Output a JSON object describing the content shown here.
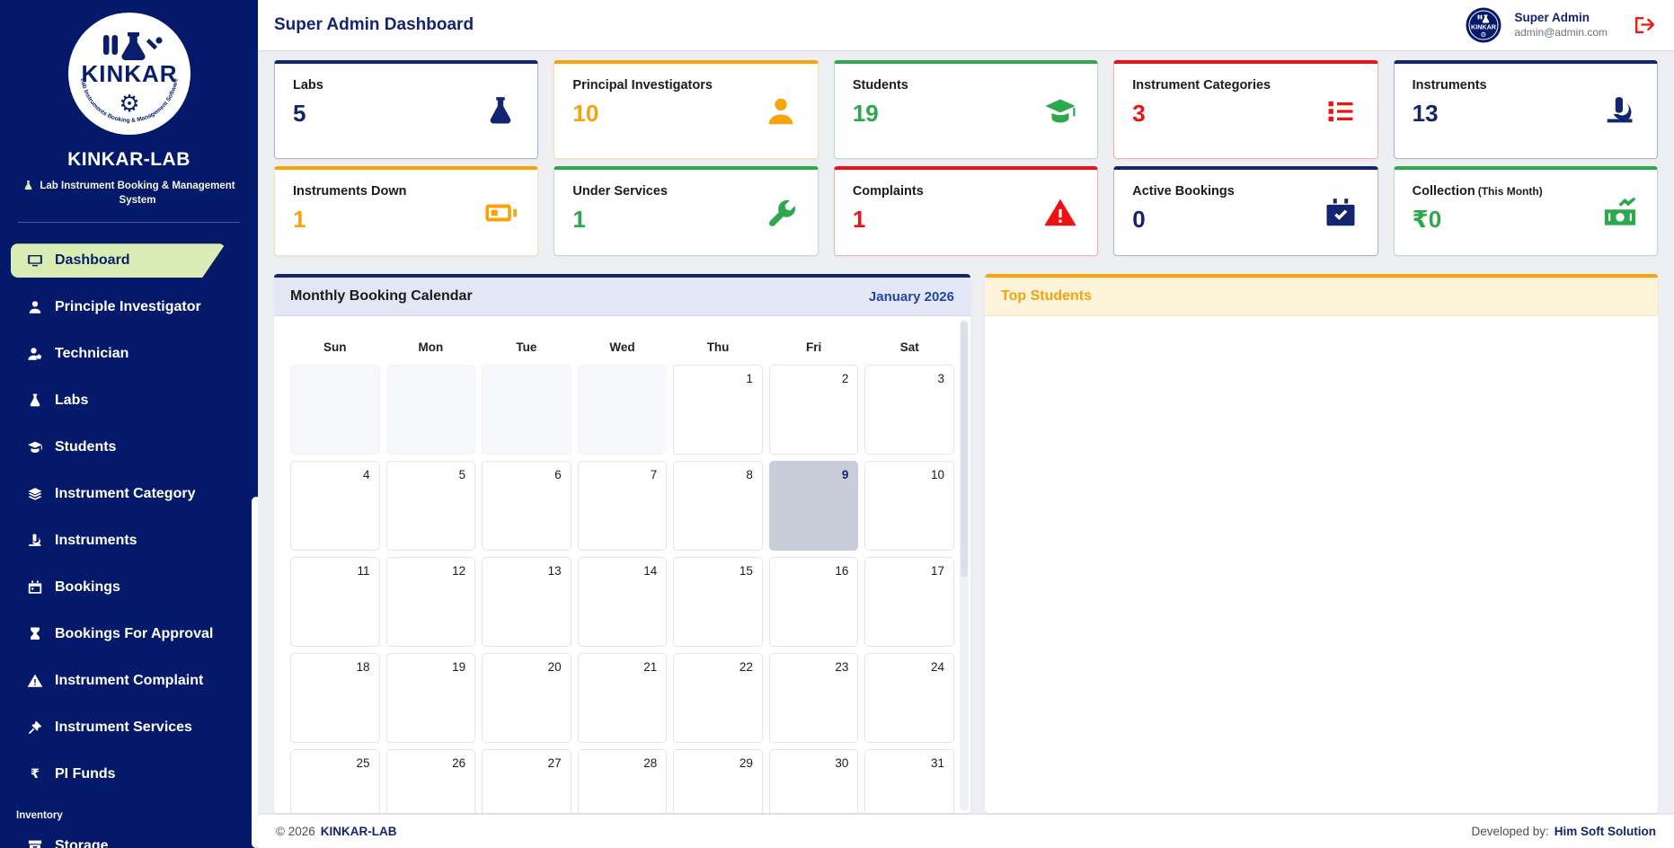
{
  "app": {
    "name": "KINKAR-LAB",
    "tagline": "Lab Instrument Booking & Management System",
    "logo_text": "KINKAR",
    "logo_ring_text": "Lab Instruments Booking & Management Software"
  },
  "header": {
    "title": "Super Admin Dashboard",
    "user_name": "Super Admin",
    "user_email": "admin@admin.com",
    "logout_icon": "logout-icon"
  },
  "colors": {
    "navy": "#14256f",
    "orange": "#f6a40a",
    "green": "#2ea84d",
    "red": "#ee1212",
    "sidebar_bg": "#04196a",
    "active_item_bg": "#d8ecb4",
    "selected_day_bg": "#c8cdd9"
  },
  "sidebar": {
    "items": [
      {
        "label": "Dashboard",
        "icon": "monitor-icon",
        "active": true
      },
      {
        "label": "Principle Investigator",
        "icon": "user-icon",
        "active": false
      },
      {
        "label": "Technician",
        "icon": "user-gear-icon",
        "active": false
      },
      {
        "label": "Labs",
        "icon": "flask-icon",
        "active": false
      },
      {
        "label": "Students",
        "icon": "graduate-icon",
        "active": false
      },
      {
        "label": "Instrument Category",
        "icon": "layers-icon",
        "active": false
      },
      {
        "label": "Instruments",
        "icon": "microscope-icon",
        "active": false
      },
      {
        "label": "Bookings",
        "icon": "calendar-icon",
        "active": false
      },
      {
        "label": "Bookings For Approval",
        "icon": "hourglass-icon",
        "active": false
      },
      {
        "label": "Instrument Complaint",
        "icon": "warning-icon",
        "active": false
      },
      {
        "label": "Instrument Services",
        "icon": "hammer-icon",
        "active": false
      },
      {
        "label": "PI Funds",
        "icon": "rupee-icon",
        "active": false
      }
    ],
    "section_label": "Inventory",
    "section_items": [
      {
        "label": "Storage",
        "icon": "storage-icon",
        "active": false
      }
    ]
  },
  "stat_cards": {
    "row1": [
      {
        "label": "Labs",
        "value": "5",
        "color_key": "navy",
        "icon": "flask-icon"
      },
      {
        "label": "Principal Investigators",
        "value": "10",
        "color_key": "orange",
        "icon": "user-icon"
      },
      {
        "label": "Students",
        "value": "19",
        "color_key": "green",
        "icon": "graduate-icon"
      },
      {
        "label": "Instrument Categories",
        "value": "3",
        "color_key": "red",
        "icon": "list-icon"
      },
      {
        "label": "Instruments",
        "value": "13",
        "color_key": "navy",
        "icon": "microscope-icon"
      }
    ],
    "row2": [
      {
        "label": "Instruments Down",
        "value": "1",
        "color_key": "orange",
        "icon": "battery-icon"
      },
      {
        "label": "Under Services",
        "value": "1",
        "color_key": "green",
        "icon": "wrench-icon"
      },
      {
        "label": "Complaints",
        "value": "1",
        "color_key": "red",
        "icon": "warning-icon"
      },
      {
        "label": "Active Bookings",
        "value": "0",
        "color_key": "navy",
        "icon": "calendar-check-icon"
      },
      {
        "label": "Collection",
        "sub_label": "(This Month)",
        "value": "₹0",
        "color_key": "green",
        "icon": "money-icon"
      }
    ]
  },
  "calendar": {
    "title": "Monthly Booking Calendar",
    "month_label": "January 2026",
    "day_names": [
      "Sun",
      "Mon",
      "Tue",
      "Wed",
      "Thu",
      "Fri",
      "Sat"
    ],
    "weeks": [
      [
        null,
        null,
        null,
        null,
        1,
        2,
        3
      ],
      [
        4,
        5,
        6,
        7,
        8,
        9,
        10
      ],
      [
        11,
        12,
        13,
        14,
        15,
        16,
        17
      ],
      [
        18,
        19,
        20,
        21,
        22,
        23,
        24
      ],
      [
        25,
        26,
        27,
        28,
        29,
        30,
        31
      ]
    ],
    "selected_day": 9
  },
  "top_students": {
    "title": "Top Students"
  },
  "footer": {
    "copyright": "© 2026",
    "brand": "KINKAR-LAB",
    "developed_label": "Developed by:",
    "developer": "Him Soft Solution"
  }
}
